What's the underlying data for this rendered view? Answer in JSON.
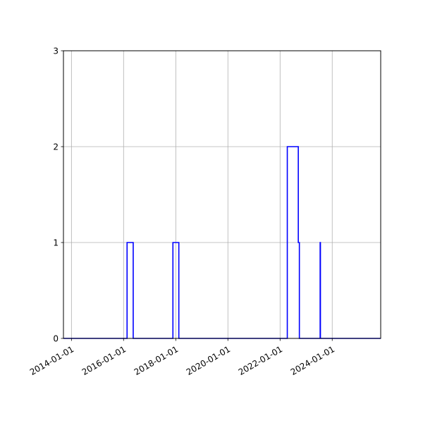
{
  "chart_data": {
    "type": "line",
    "step": true,
    "title": "",
    "xlabel": "",
    "ylabel": "",
    "xlim": [
      "2013-09-11",
      "2025-11-10"
    ],
    "ylim": [
      0,
      3
    ],
    "grid": true,
    "x_ticks": [
      "2014-01-01",
      "2016-01-01",
      "2018-01-01",
      "2020-01-01",
      "2022-01-01",
      "2024-01-01"
    ],
    "y_ticks": [
      0,
      1,
      2,
      3
    ],
    "line_color": "#0000ff",
    "series": [
      {
        "points": [
          [
            "2013-09-11",
            0
          ],
          [
            "2016-02-19",
            0
          ],
          [
            "2016-02-19",
            1
          ],
          [
            "2016-05-15",
            1
          ],
          [
            "2016-05-15",
            0
          ],
          [
            "2017-11-22",
            0
          ],
          [
            "2017-11-22",
            1
          ],
          [
            "2018-02-13",
            1
          ],
          [
            "2018-02-13",
            0
          ],
          [
            "2022-04-12",
            0
          ],
          [
            "2022-04-12",
            2
          ],
          [
            "2022-09-13",
            2
          ],
          [
            "2022-09-13",
            1
          ],
          [
            "2022-09-28",
            1
          ],
          [
            "2022-09-28",
            0
          ],
          [
            "2023-07-16",
            0
          ],
          [
            "2023-07-16",
            1
          ],
          [
            "2023-07-20",
            1
          ],
          [
            "2023-07-20",
            0
          ],
          [
            "2025-11-10",
            0
          ]
        ]
      }
    ]
  }
}
